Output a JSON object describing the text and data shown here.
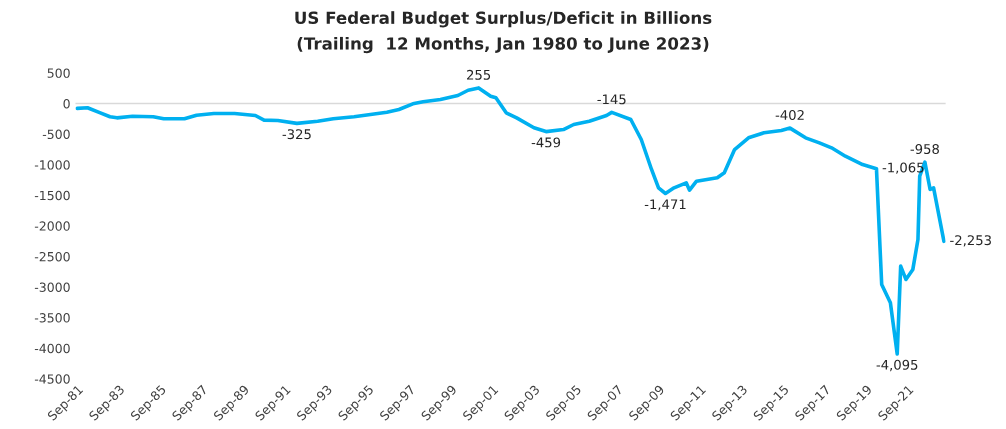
{
  "chart_data": {
    "type": "line",
    "title": "US Federal Budget Surplus/Deficit in Billions",
    "subtitle": "(Trailing  12 Months, Jan 1980 to June 2023)",
    "x": [
      "1981-09",
      "1982-03",
      "1982-10",
      "1983-04",
      "1983-08",
      "1984-05",
      "1985-05",
      "1985-11",
      "1986-11",
      "1987-06",
      "1988-04",
      "1989-04",
      "1990-04",
      "1990-09",
      "1991-05",
      "1992-04",
      "1993-04",
      "1994-01",
      "1995-01",
      "1996-08",
      "1997-03",
      "1997-11",
      "1998-05",
      "1999-03",
      "2000-01",
      "2000-07",
      "2001-01",
      "2001-08",
      "2001-11",
      "2002-05",
      "2002-11",
      "2003-09",
      "2004-04",
      "2005-02",
      "2005-08",
      "2006-05",
      "2007-03",
      "2007-06",
      "2008-05",
      "2008-11",
      "2009-05",
      "2009-09",
      "2010-01",
      "2010-06",
      "2011-01",
      "2011-03",
      "2011-07",
      "2012-07",
      "2012-11",
      "2013-05",
      "2014-01",
      "2014-10",
      "2015-08",
      "2016-01",
      "2016-10",
      "2017-06",
      "2018-01",
      "2018-09",
      "2019-07",
      "2020-03",
      "2020-06",
      "2020-11",
      "2021-03",
      "2021-05",
      "2021-08",
      "2021-12",
      "2022-03",
      "2022-04",
      "2022-07",
      "2022-10",
      "2022-12",
      "2023-06"
    ],
    "series": [
      {
        "color": "#00b0f0",
        "values": [
          -80,
          -70,
          -150,
          -217,
          -234,
          -207,
          -217,
          -250,
          -250,
          -191,
          -163,
          -163,
          -196,
          -272,
          -278,
          -325,
          -289,
          -250,
          -217,
          -142,
          -98,
          -5,
          28,
          65,
          131,
          217,
          255,
          119,
          93,
          -152,
          -234,
          -397,
          -459,
          -425,
          -343,
          -289,
          -196,
          -145,
          -261,
          -588,
          -1078,
          -1378,
          -1471,
          -1378,
          -1296,
          -1417,
          -1270,
          -1214,
          -1132,
          -752,
          -561,
          -479,
          -441,
          -402,
          -561,
          -643,
          -724,
          -861,
          -997,
          -1065,
          -2958,
          -3257,
          -4095,
          -2658,
          -2876,
          -2712,
          -2222,
          -1187,
          -958,
          -1405,
          -1378,
          -2253
        ]
      }
    ],
    "annotations": [
      {
        "text": "-325",
        "x": "1992-04",
        "y": -325
      },
      {
        "text": "255",
        "x": "2001-01",
        "y": 255
      },
      {
        "text": "-459",
        "x": "2004-04",
        "y": -459
      },
      {
        "text": "-145",
        "x": "2007-06",
        "y": -145
      },
      {
        "text": "-1,471",
        "x": "2010-01",
        "y": -1471
      },
      {
        "text": "-402",
        "x": "2016-01",
        "y": -402
      },
      {
        "text": "-1,065",
        "x": "2020-03",
        "y": -1065
      },
      {
        "text": "-4,095",
        "x": "2021-03",
        "y": -4095
      },
      {
        "text": "-958",
        "x": "2022-07",
        "y": -958
      },
      {
        "text": "-2,253",
        "x": "2023-06",
        "y": -2253
      }
    ],
    "ylim": [
      -4500,
      500
    ],
    "yticks": [
      -4500,
      -4000,
      -3500,
      -3000,
      -2500,
      -2000,
      -1500,
      -1000,
      -500,
      0,
      500
    ],
    "xlim": [
      "1981-08",
      "2023-07"
    ],
    "xticks": [
      {
        "value": "1981-09",
        "label": "Sep-81"
      },
      {
        "value": "1983-09",
        "label": "Sep-83"
      },
      {
        "value": "1985-09",
        "label": "Sep-85"
      },
      {
        "value": "1987-09",
        "label": "Sep-87"
      },
      {
        "value": "1989-09",
        "label": "Sep-89"
      },
      {
        "value": "1991-09",
        "label": "Sep-91"
      },
      {
        "value": "1993-09",
        "label": "Sep-93"
      },
      {
        "value": "1995-09",
        "label": "Sep-95"
      },
      {
        "value": "1997-09",
        "label": "Sep-97"
      },
      {
        "value": "1999-09",
        "label": "Sep-99"
      },
      {
        "value": "2001-09",
        "label": "Sep-01"
      },
      {
        "value": "2003-09",
        "label": "Sep-03"
      },
      {
        "value": "2005-09",
        "label": "Sep-05"
      },
      {
        "value": "2007-09",
        "label": "Sep-07"
      },
      {
        "value": "2009-09",
        "label": "Sep-09"
      },
      {
        "value": "2011-09",
        "label": "Sep-11"
      },
      {
        "value": "2013-09",
        "label": "Sep-13"
      },
      {
        "value": "2015-09",
        "label": "Sep-15"
      },
      {
        "value": "2017-09",
        "label": "Sep-17"
      },
      {
        "value": "2019-09",
        "label": "Sep-19"
      },
      {
        "value": "2021-09",
        "label": "Sep-21"
      }
    ],
    "ref_lines": [
      {
        "axis": "y",
        "value": 0,
        "color": "#d9d9d9"
      }
    ],
    "grid": false,
    "legend": false,
    "marker": "none",
    "line_style": "solid"
  }
}
